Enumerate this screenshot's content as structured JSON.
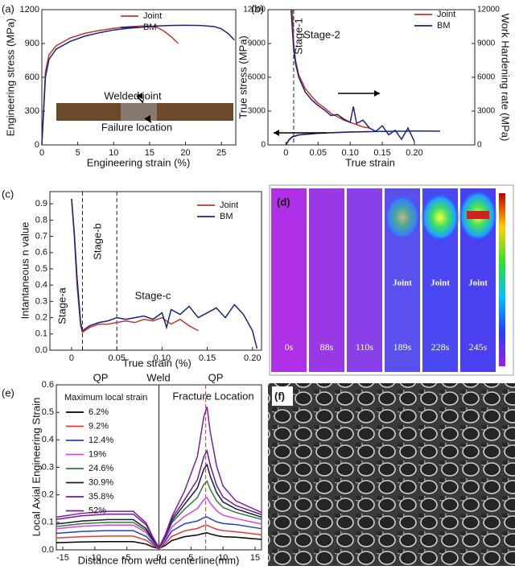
{
  "chart_data": [
    {
      "type": "line",
      "panel_label": "(a)",
      "xlabel": "Engineering strain (%)",
      "ylabel": "Engineering stress (MPa)",
      "xlim": [
        0,
        27
      ],
      "xticks": [
        0,
        5,
        10,
        15,
        20,
        25
      ],
      "ylim": [
        0,
        1200
      ],
      "yticks": [
        0,
        300,
        600,
        900,
        1200
      ],
      "annotations": [
        "Welded joint",
        "Failure location"
      ],
      "series": [
        {
          "name": "Joint",
          "color": "#c0392b",
          "x": [
            0,
            0.5,
            1,
            2,
            4,
            6,
            8,
            10,
            12,
            14,
            15,
            16,
            17,
            18,
            19
          ],
          "values": [
            0,
            650,
            800,
            880,
            950,
            990,
            1015,
            1035,
            1048,
            1055,
            1055,
            1045,
            1010,
            960,
            900
          ]
        },
        {
          "name": "BM",
          "color": "#1a237e",
          "x": [
            0,
            0.5,
            1,
            2,
            4,
            6,
            8,
            10,
            12,
            14,
            16,
            18,
            20,
            22,
            24,
            25,
            26,
            26.8
          ],
          "values": [
            0,
            600,
            760,
            850,
            920,
            965,
            995,
            1020,
            1035,
            1045,
            1055,
            1060,
            1062,
            1060,
            1050,
            1030,
            985,
            930
          ]
        }
      ]
    },
    {
      "type": "line",
      "panel_label": "(b)",
      "xlabel": "True strain",
      "ylabel": "True stress (MPa)",
      "y2label": "Work Hardening rate (MPa)",
      "xlim": [
        -0.028,
        0.294
      ],
      "xticks": [
        0,
        0.05,
        {
          "value": 0.1,
          "label": "0.10"
        },
        0.15,
        {
          "value": 0.2,
          "label": "0.20"
        }
      ],
      "ylim": [
        0,
        12000
      ],
      "yticks": [
        0,
        3000,
        6000,
        9000,
        12000
      ],
      "y2lim": [
        0,
        12000
      ],
      "y2ticks": [
        0,
        3000,
        6000,
        9000,
        12000
      ],
      "vlines": [
        0.012
      ],
      "annotations": [
        "Stage-1",
        "Stage-2"
      ],
      "series": [
        {
          "name": "Joint",
          "color": "#c0392b",
          "axis": "y2",
          "x": [
            0.01,
            0.012,
            0.015,
            0.02,
            0.03,
            0.04,
            0.05,
            0.06,
            0.07,
            0.08,
            0.09,
            0.1,
            0.11,
            0.12,
            0.13
          ],
          "values": [
            12000,
            9000,
            7500,
            6200,
            5000,
            4300,
            3700,
            3300,
            2800,
            2500,
            2200,
            2000,
            1800,
            1600,
            1500
          ]
        },
        {
          "name": "BM",
          "color": "#1a237e",
          "axis": "y2",
          "x": [
            0.008,
            0.012,
            0.015,
            0.02,
            0.03,
            0.04,
            0.05,
            0.06,
            0.07,
            0.08,
            0.09,
            0.1,
            0.105,
            0.11,
            0.12,
            0.13,
            0.14,
            0.15,
            0.16,
            0.17,
            0.18,
            0.19,
            0.2
          ],
          "values": [
            12000,
            8500,
            7200,
            6000,
            4700,
            4000,
            3500,
            3100,
            2600,
            2700,
            2300,
            2000,
            3400,
            1900,
            2200,
            1500,
            1200,
            1700,
            900,
            1300,
            500,
            1500,
            300
          ]
        },
        {
          "name": "Joint",
          "color": "#c0392b",
          "x": [
            0,
            0.005,
            0.01,
            0.02,
            0.05,
            0.1,
            0.13
          ],
          "values": [
            0,
            500,
            750,
            900,
            1050,
            1150,
            1180
          ]
        },
        {
          "name": "BM",
          "color": "#1a237e",
          "x": [
            0,
            0.005,
            0.01,
            0.02,
            0.05,
            0.1,
            0.15,
            0.2,
            0.24
          ],
          "values": [
            0,
            450,
            700,
            880,
            1030,
            1140,
            1200,
            1230,
            1220
          ]
        }
      ]
    },
    {
      "type": "line",
      "panel_label": "(c)",
      "xlabel": "True strain (%)",
      "ylabel": "Intantaneous n value",
      "xlim": [
        -0.024,
        0.21
      ],
      "xticks": [
        0,
        0.05,
        {
          "value": 0.1,
          "label": "0.10"
        },
        0.15,
        {
          "value": 0.2,
          "label": "0.20"
        }
      ],
      "ylim": [
        0,
        0.975
      ],
      "yticks": [
        {
          "value": 0,
          "label": "0.0"
        },
        0.1,
        0.2,
        0.3,
        0.4,
        0.5,
        0.6,
        0.7,
        0.8,
        0.9
      ],
      "vlines": [
        0.012,
        0.05
      ],
      "annotations": [
        "Stage-a",
        "Stage-b",
        "Stage-c"
      ],
      "series": [
        {
          "name": "Joint",
          "color": "#c0392b",
          "x": [
            0,
            0.003,
            0.006,
            0.01,
            0.012,
            0.02,
            0.03,
            0.04,
            0.05,
            0.06,
            0.07,
            0.08,
            0.09,
            0.1,
            0.11,
            0.12,
            0.13,
            0.14
          ],
          "values": [
            0.93,
            0.7,
            0.4,
            0.15,
            0.11,
            0.14,
            0.16,
            0.16,
            0.17,
            0.18,
            0.17,
            0.19,
            0.18,
            0.2,
            0.16,
            0.19,
            0.15,
            0.12
          ]
        },
        {
          "name": "BM",
          "color": "#1a237e",
          "x": [
            0,
            0.003,
            0.006,
            0.01,
            0.012,
            0.02,
            0.03,
            0.04,
            0.05,
            0.06,
            0.07,
            0.08,
            0.09,
            0.1,
            0.105,
            0.11,
            0.12,
            0.13,
            0.14,
            0.15,
            0.16,
            0.17,
            0.18,
            0.19,
            0.2,
            0.205
          ],
          "values": [
            0.93,
            0.72,
            0.45,
            0.17,
            0.12,
            0.15,
            0.17,
            0.18,
            0.2,
            0.19,
            0.2,
            0.21,
            0.19,
            0.23,
            0.14,
            0.25,
            0.22,
            0.27,
            0.2,
            0.23,
            0.26,
            0.2,
            0.28,
            0.22,
            0.12,
            0.01
          ]
        }
      ]
    },
    {
      "type": "line",
      "panel_label": "(e)",
      "xlabel": "Distance from weld centerline(mm)",
      "ylabel": "Local Axial Engineering Strain",
      "legend_title": "Maximum local strain",
      "xlim": [
        -16,
        16
      ],
      "xticks": [
        -15,
        -10,
        -5,
        0,
        5,
        10,
        15
      ],
      "ylim": [
        0,
        0.6
      ],
      "yticks": [
        {
          "value": 0,
          "label": "0.0"
        },
        0.1,
        0.2,
        0.3,
        0.4,
        0.5,
        0.6
      ],
      "vlines": [
        0
      ],
      "fracture_line": 7.3,
      "annotations": [
        "QP",
        "Weld",
        "QP",
        "Fracture Location"
      ],
      "x": [
        -16,
        -12,
        -8,
        -4,
        -2,
        -1,
        0,
        1,
        2,
        4,
        6,
        7,
        7.5,
        8,
        9,
        10,
        12,
        16
      ],
      "series": [
        {
          "name": "6.2%",
          "color": "#000000",
          "values": [
            0.026,
            0.029,
            0.03,
            0.03,
            0.021,
            0.011,
            0.005,
            0.016,
            0.034,
            0.048,
            0.054,
            0.06,
            0.062,
            0.058,
            0.052,
            0.048,
            0.046,
            0.038
          ]
        },
        {
          "name": "9.2%",
          "color": "#e53935",
          "values": [
            0.043,
            0.048,
            0.05,
            0.05,
            0.035,
            0.018,
            0.005,
            0.023,
            0.049,
            0.069,
            0.078,
            0.088,
            0.09,
            0.084,
            0.075,
            0.07,
            0.066,
            0.055
          ]
        },
        {
          "name": "12.4%",
          "color": "#1e3fd0",
          "values": [
            0.06,
            0.067,
            0.07,
            0.07,
            0.049,
            0.025,
            0.006,
            0.032,
            0.068,
            0.095,
            0.105,
            0.117,
            0.12,
            0.113,
            0.102,
            0.096,
            0.092,
            0.077
          ]
        },
        {
          "name": "19%",
          "color": "#e040e0",
          "values": [
            0.077,
            0.086,
            0.09,
            0.09,
            0.063,
            0.032,
            0.006,
            0.039,
            0.083,
            0.122,
            0.15,
            0.182,
            0.19,
            0.17,
            0.142,
            0.126,
            0.114,
            0.094
          ]
        },
        {
          "name": "24.6%",
          "color": "#2e7d32",
          "values": [
            0.085,
            0.095,
            0.1,
            0.1,
            0.07,
            0.035,
            0.007,
            0.046,
            0.098,
            0.148,
            0.19,
            0.238,
            0.25,
            0.22,
            0.178,
            0.154,
            0.136,
            0.111
          ]
        },
        {
          "name": "30.9%",
          "color": "#1a1a40",
          "values": [
            0.094,
            0.105,
            0.11,
            0.11,
            0.077,
            0.039,
            0.007,
            0.049,
            0.105,
            0.166,
            0.225,
            0.293,
            0.31,
            0.268,
            0.208,
            0.174,
            0.149,
            0.119
          ]
        },
        {
          "name": "35.8%",
          "color": "#6a1b9a",
          "values": [
            0.111,
            0.124,
            0.13,
            0.13,
            0.091,
            0.046,
            0.008,
            0.053,
            0.113,
            0.182,
            0.255,
            0.339,
            0.36,
            0.308,
            0.234,
            0.192,
            0.161,
            0.128
          ]
        },
        {
          "name": "52%",
          "color": "#7b1fa2",
          "values": [
            0.119,
            0.133,
            0.14,
            0.14,
            0.098,
            0.049,
            0.008,
            0.056,
            0.12,
            0.214,
            0.34,
            0.484,
            0.52,
            0.43,
            0.304,
            0.232,
            0.178,
            0.136
          ]
        }
      ]
    }
  ],
  "panel_d": {
    "label": "(d)",
    "frames": [
      "0s",
      "88s",
      "110s",
      "189s",
      "228s",
      "245s"
    ],
    "joint_labels": [
      "Joint",
      "Joint",
      "Joint"
    ]
  },
  "panel_f": {
    "label": "(f)"
  }
}
